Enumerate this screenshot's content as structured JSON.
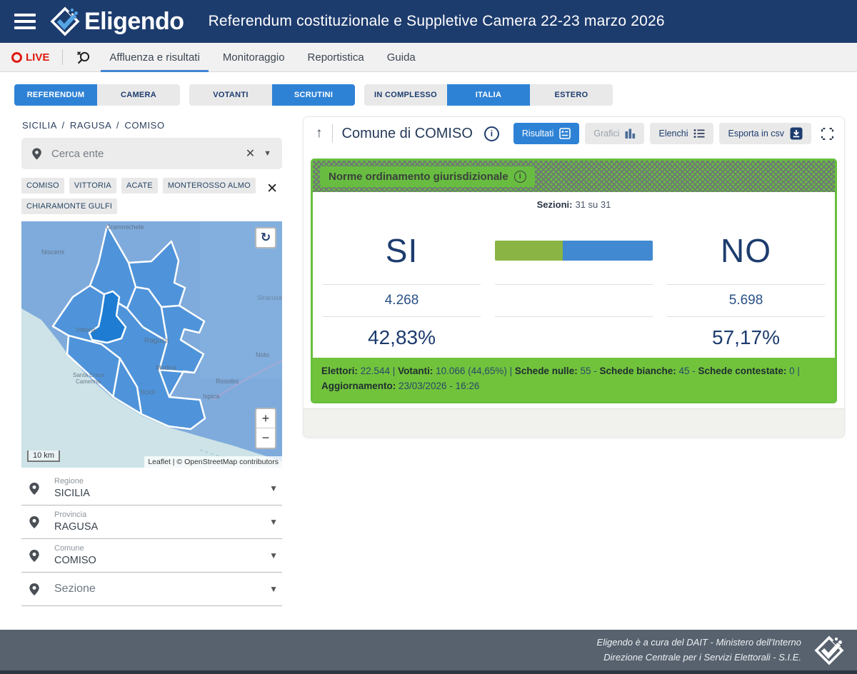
{
  "colors": {
    "header_navy": "#1d3c6e",
    "accent_blue": "#2e82d6",
    "live_red": "#df1b12",
    "green": "#72c33c",
    "label_green": "#68bd41",
    "card_border_green": "#68bf3e",
    "bar_green": "#8ab544",
    "bar_blue": "#4189d0",
    "footer_slate": "#57626e"
  },
  "header": {
    "logo_text": "Eligendo",
    "title": "Referendum costituzionale e Suppletive Camera 22-23 marzo 2026"
  },
  "nav": {
    "live_label": "LIVE",
    "items": [
      {
        "label": "Affluenza e risultati"
      },
      {
        "label": "Monitoraggio"
      },
      {
        "label": "Reportistica"
      },
      {
        "label": "Guida"
      }
    ]
  },
  "filters": {
    "election": [
      {
        "label": "REFERENDUM"
      },
      {
        "label": "CAMERA"
      }
    ],
    "view": [
      {
        "label": "VOTANTI"
      },
      {
        "label": "SCRUTINI"
      }
    ],
    "area": [
      {
        "label": "IN COMPLESSO"
      },
      {
        "label": "ITALIA"
      },
      {
        "label": "ESTERO"
      }
    ]
  },
  "sidebar": {
    "breadcrumb": "SICILIA / RAGUSA / COMISO",
    "search_placeholder": "Cerca ente",
    "chips": [
      "COMISO",
      "VITTORIA",
      "ACATE",
      "MONTEROSSO ALMO",
      "CHIARAMONTE GULFI"
    ],
    "map": {
      "scale": "10 km",
      "attribution": "Leaflet | © OpenStreetMap contributors",
      "zoom_in": "+",
      "zoom_out": "−",
      "refresh": "↻",
      "labels": {
        "grammichele": "Grammichele",
        "niscemi": "Niscemi",
        "vittoria": "Vittoria",
        "ragusa": "Ragusa",
        "modica": "Modica",
        "scicli": "Scicli",
        "ispica": "Ispica",
        "rosolini": "Rosolini",
        "noto": "Noto",
        "santa_croce_1": "Santa Croce",
        "santa_croce_2": "Camerina",
        "siracusa": "Siracusa"
      }
    },
    "selects": [
      {
        "label": "Regione",
        "value": "SICILIA"
      },
      {
        "label": "Provincia",
        "value": "RAGUSA"
      },
      {
        "label": "Comune",
        "value": "COMISO"
      },
      {
        "label": "Sezione",
        "value": ""
      }
    ]
  },
  "panel": {
    "collapse": "↑",
    "title": "Comune di COMISO",
    "toolbar": {
      "info": "i",
      "risultati": "Risultati",
      "grafici": "Grafici",
      "elenchi": "Elenchi",
      "esporta": "Esporta in csv"
    },
    "card": {
      "header": "Norme ordinamento giurisdizionale",
      "header_info": "i",
      "sezioni_label": "Sezioni:",
      "sezioni_value": "31 su 31",
      "si": {
        "name": "SI",
        "votes": "4.268",
        "pct": "42,83%",
        "pct_num": 42.83
      },
      "no": {
        "name": "NO",
        "votes": "5.698",
        "pct": "57,17%",
        "pct_num": 57.17
      },
      "stats": [
        {
          "label": "Elettori:",
          "value": "22.544",
          "sep": " | "
        },
        {
          "label": "Votanti:",
          "value": "10.066 (44,65%)",
          "sep": " | "
        },
        {
          "label": "Schede nulle:",
          "value": "55",
          "sep": " - "
        },
        {
          "label": "Schede bianche:",
          "value": "45",
          "sep": " - "
        },
        {
          "label": "Schede contestate:",
          "value": "0",
          "sep": " | "
        },
        {
          "label": "Aggiornamento:",
          "value": "23/03/2026 - 16:26",
          "sep": ""
        }
      ]
    }
  },
  "footer": {
    "line1": "Eligendo è a cura del DAIT - Ministero dell'Interno",
    "line2": "Direzione Centrale per i Servizi Elettorali - S.I.E."
  }
}
